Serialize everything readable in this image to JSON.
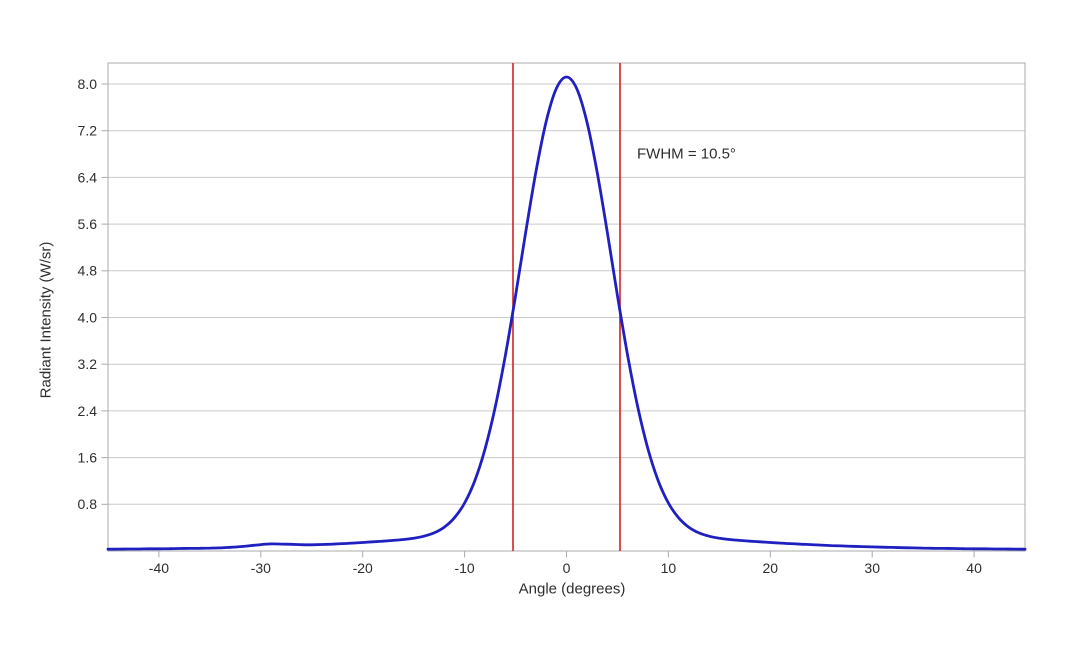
{
  "chart_data": {
    "type": "line",
    "title": "",
    "xlabel": "Angle (degrees)",
    "ylabel": "Radiant Intensity (W/sr)",
    "annotation": "FWHM = 10.5°",
    "xlim": [
      -45,
      45
    ],
    "ylim": [
      0,
      8.36
    ],
    "grid": "horizontal",
    "legend": "none",
    "xticks": [
      {
        "v": -40,
        "label": "-40"
      },
      {
        "v": -30,
        "label": "-30"
      },
      {
        "v": -20,
        "label": "-20"
      },
      {
        "v": -10,
        "label": "-10"
      },
      {
        "v": 0,
        "label": "0"
      },
      {
        "v": 10,
        "label": "10"
      },
      {
        "v": 20,
        "label": "20"
      },
      {
        "v": 30,
        "label": "30"
      },
      {
        "v": 40,
        "label": "40"
      }
    ],
    "yticks": [
      {
        "v": 0.8,
        "label": "0.8"
      },
      {
        "v": 1.6,
        "label": "1.6"
      },
      {
        "v": 2.4,
        "label": "2.4"
      },
      {
        "v": 3.2,
        "label": "3.2"
      },
      {
        "v": 4.0,
        "label": "4.0"
      },
      {
        "v": 4.8,
        "label": "4.8"
      },
      {
        "v": 5.6,
        "label": "5.6"
      },
      {
        "v": 6.4,
        "label": "6.4"
      },
      {
        "v": 7.2,
        "label": "7.2"
      },
      {
        "v": 8.0,
        "label": "8.0"
      }
    ],
    "fwhm_lines_deg": [
      -5.25,
      5.25
    ],
    "fwhm_value_deg": 10.5,
    "peak_intensity_w_sr": 8.12,
    "half_max_w_sr": 4.06,
    "colors": {
      "curve": "#2020c0",
      "fwhm_line": "#d02222",
      "gridline": "#c9c9c9",
      "border": "#ababab",
      "text": "#2e2e2e",
      "background": "#ffffff"
    },
    "series": [
      {
        "name": "radiant_intensity",
        "x": [
          -45,
          -44,
          -43,
          -42,
          -41,
          -40,
          -39,
          -38,
          -37,
          -36,
          -35,
          -34,
          -33,
          -32,
          -31,
          -30,
          -29,
          -28,
          -27,
          -26,
          -25,
          -24,
          -23,
          -22,
          -21,
          -20,
          -19,
          -18,
          -17,
          -16,
          -15,
          -14,
          -13,
          -12,
          -11,
          -10,
          -9,
          -8,
          -7,
          -6,
          -5,
          -4,
          -3,
          -2,
          -1,
          0,
          1,
          2,
          3,
          4,
          5,
          6,
          7,
          8,
          9,
          10,
          11,
          12,
          13,
          14,
          15,
          16,
          17,
          18,
          19,
          20,
          21,
          22,
          23,
          24,
          25,
          26,
          27,
          28,
          29,
          30,
          31,
          32,
          33,
          34,
          35,
          36,
          37,
          38,
          39,
          40,
          41,
          42,
          43,
          44,
          45
        ],
        "y": [
          0.031,
          0.032,
          0.034,
          0.035,
          0.037,
          0.038,
          0.04,
          0.042,
          0.045,
          0.047,
          0.05,
          0.053,
          0.063,
          0.075,
          0.092,
          0.109,
          0.122,
          0.118,
          0.114,
          0.108,
          0.107,
          0.111,
          0.117,
          0.126,
          0.136,
          0.146,
          0.157,
          0.168,
          0.181,
          0.197,
          0.218,
          0.253,
          0.31,
          0.408,
          0.568,
          0.823,
          1.205,
          1.746,
          2.464,
          3.355,
          4.379,
          5.462,
          6.494,
          7.352,
          7.921,
          8.12,
          7.921,
          7.352,
          6.494,
          5.462,
          4.379,
          3.355,
          2.464,
          1.746,
          1.205,
          0.823,
          0.568,
          0.408,
          0.31,
          0.253,
          0.218,
          0.197,
          0.181,
          0.168,
          0.157,
          0.146,
          0.136,
          0.126,
          0.117,
          0.109,
          0.101,
          0.093,
          0.087,
          0.08,
          0.075,
          0.07,
          0.065,
          0.061,
          0.057,
          0.053,
          0.05,
          0.047,
          0.045,
          0.042,
          0.04,
          0.038,
          0.037,
          0.035,
          0.034,
          0.032,
          0.031
        ]
      }
    ]
  }
}
